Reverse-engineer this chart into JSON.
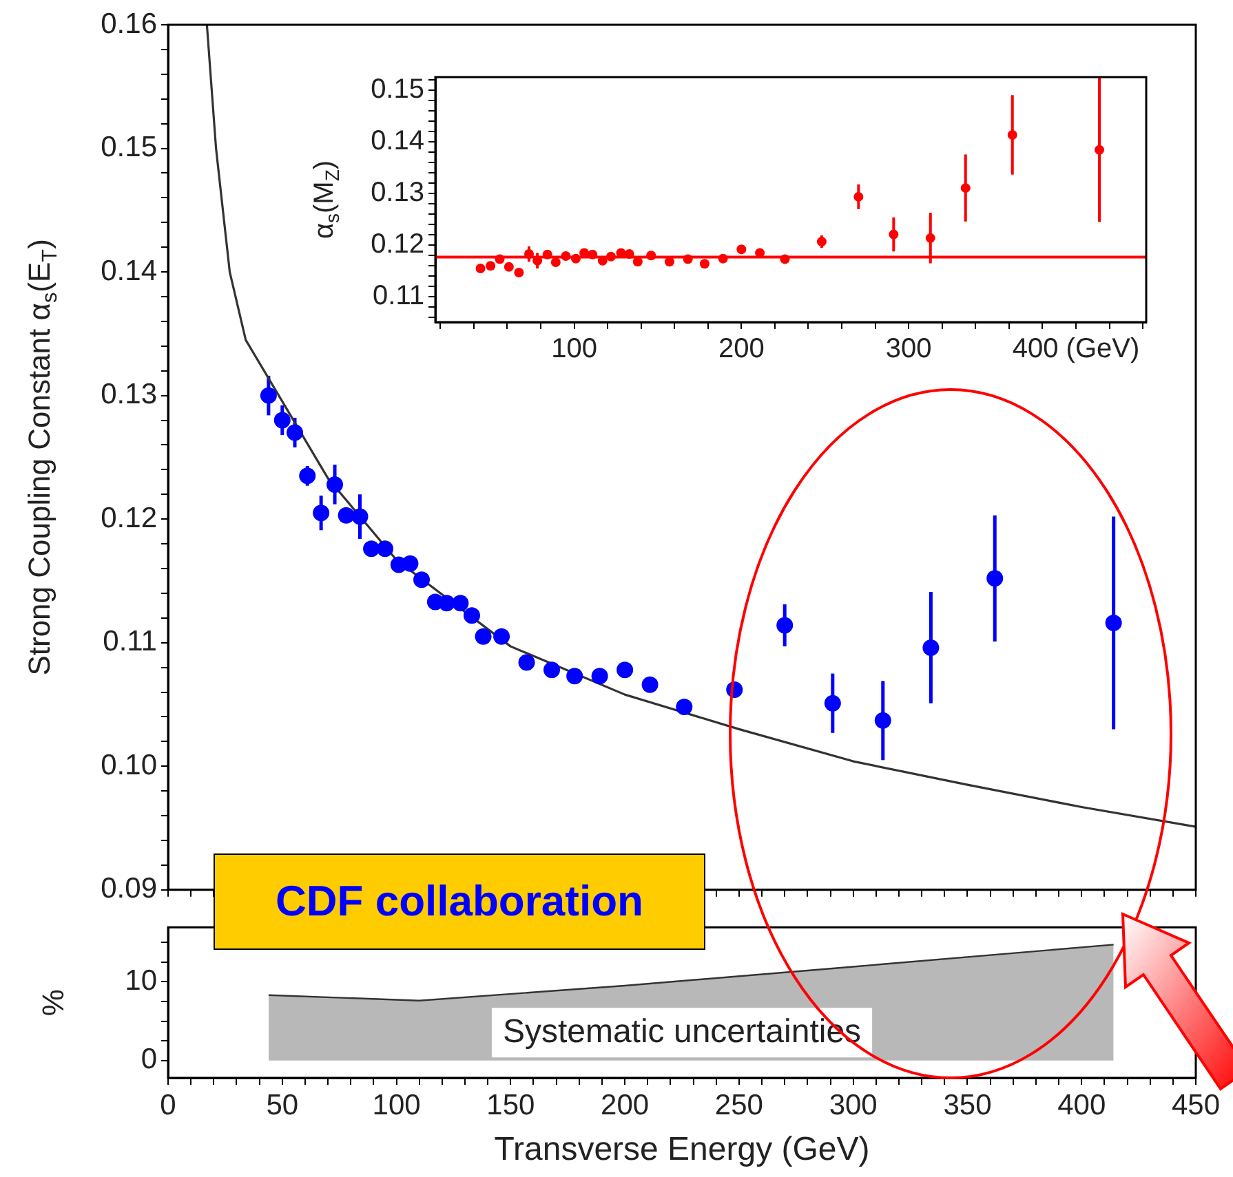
{
  "chart_data": [
    {
      "type": "scatter",
      "ylabel": "Strong Coupling Constant α$_{s}$(E$_{T}$)",
      "xlim": [
        0,
        450
      ],
      "ylim": [
        0.09,
        0.16
      ],
      "tick_labels": "y",
      "marker": "circle",
      "xticks": [
        0,
        {
          "value": 10,
          "label": null
        },
        {
          "value": 20,
          "label": null
        },
        {
          "value": 30,
          "label": null
        },
        {
          "value": 40,
          "label": null
        },
        50,
        {
          "value": 60,
          "label": null
        },
        {
          "value": 70,
          "label": null
        },
        {
          "value": 80,
          "label": null
        },
        {
          "value": 90,
          "label": null
        },
        100,
        {
          "value": 110,
          "label": null
        },
        {
          "value": 120,
          "label": null
        },
        {
          "value": 130,
          "label": null
        },
        {
          "value": 140,
          "label": null
        },
        150,
        {
          "value": 160,
          "label": null
        },
        {
          "value": 170,
          "label": null
        },
        {
          "value": 180,
          "label": null
        },
        {
          "value": 190,
          "label": null
        },
        200,
        {
          "value": 210,
          "label": null
        },
        {
          "value": 220,
          "label": null
        },
        {
          "value": 230,
          "label": null
        },
        {
          "value": 240,
          "label": null
        },
        250,
        {
          "value": 260,
          "label": null
        },
        {
          "value": 270,
          "label": null
        },
        {
          "value": 280,
          "label": null
        },
        {
          "value": 290,
          "label": null
        },
        300,
        {
          "value": 310,
          "label": null
        },
        {
          "value": 320,
          "label": null
        },
        {
          "value": 330,
          "label": null
        },
        {
          "value": 340,
          "label": null
        },
        350,
        {
          "value": 360,
          "label": null
        },
        {
          "value": 370,
          "label": null
        },
        {
          "value": 380,
          "label": null
        },
        {
          "value": 390,
          "label": null
        },
        400,
        {
          "value": 410,
          "label": null
        },
        {
          "value": 420,
          "label": null
        },
        {
          "value": 430,
          "label": null
        },
        {
          "value": 440,
          "label": null
        },
        450
      ],
      "yticks": [
        0.09,
        {
          "value": 0.092,
          "label": null
        },
        {
          "value": 0.094,
          "label": null
        },
        {
          "value": 0.096,
          "label": null
        },
        {
          "value": 0.098,
          "label": null
        },
        {
          "value": 0.1,
          "label": "0.10"
        },
        {
          "value": 0.102,
          "label": null
        },
        {
          "value": 0.104,
          "label": null
        },
        {
          "value": 0.106,
          "label": null
        },
        {
          "value": 0.108,
          "label": null
        },
        0.11,
        {
          "value": 0.112,
          "label": null
        },
        {
          "value": 0.114,
          "label": null
        },
        {
          "value": 0.116,
          "label": null
        },
        {
          "value": 0.118,
          "label": null
        },
        0.12,
        {
          "value": 0.122,
          "label": null
        },
        {
          "value": 0.124,
          "label": null
        },
        {
          "value": 0.126,
          "label": null
        },
        {
          "value": 0.128,
          "label": null
        },
        0.13,
        {
          "value": 0.132,
          "label": null
        },
        {
          "value": 0.134,
          "label": null
        },
        {
          "value": 0.136,
          "label": null
        },
        {
          "value": 0.138,
          "label": null
        },
        0.14,
        {
          "value": 0.142,
          "label": null
        },
        {
          "value": 0.144,
          "label": null
        },
        {
          "value": 0.146,
          "label": null
        },
        {
          "value": 0.148,
          "label": null
        },
        0.15,
        {
          "value": 0.152,
          "label": null
        },
        {
          "value": 0.154,
          "label": null
        },
        {
          "value": 0.156,
          "label": null
        },
        {
          "value": 0.158,
          "label": null
        },
        0.16
      ],
      "annotations": [
        "CDF collaboration"
      ],
      "series": [
        {
          "color": "#0000ff",
          "x": [
            44,
            50,
            55.5,
            61,
            67,
            73,
            78,
            84,
            89,
            95,
            101,
            106,
            111,
            117,
            122,
            128,
            133,
            138,
            146,
            157,
            168,
            178,
            189,
            200,
            211,
            226,
            248,
            270,
            291,
            313,
            334,
            362,
            414
          ],
          "values": [
            0.13,
            0.128,
            0.127,
            0.1235,
            0.1205,
            0.1228,
            0.1203,
            0.1202,
            0.1176,
            0.1176,
            0.1163,
            0.1164,
            0.1151,
            0.1133,
            0.1132,
            0.1132,
            0.1122,
            0.1105,
            0.1105,
            0.1084,
            0.1078,
            0.1073,
            0.1073,
            0.1078,
            0.1066,
            0.1048,
            0.1062,
            0.1114,
            0.1051,
            0.1037,
            0.1096,
            0.1152,
            0.1116
          ],
          "errors": [
            0.0016,
            0.0012,
            0.0012,
            0.0008,
            0.0014,
            0.0016,
            0.0006,
            0.0018,
            0.0005,
            0.0005,
            0.0005,
            0.0005,
            0.0005,
            0.0006,
            0.0005,
            0.0005,
            0.0005,
            0.0005,
            0.0005,
            0.0004,
            0.0004,
            0.0004,
            0.0004,
            0.0004,
            0.0004,
            0.0004,
            0.0006,
            0.0017,
            0.0024,
            0.0032,
            0.0045,
            0.0051,
            0.0086
          ]
        },
        {
          "type": "line",
          "color": "#333333",
          "marker": "none",
          "x": [
            17,
            21,
            27,
            34,
            70,
            100,
            150,
            200,
            250,
            300,
            350,
            400,
            450
          ],
          "values": [
            0.16,
            0.15,
            0.14,
            0.1345,
            0.1233,
            0.1167,
            0.1097,
            0.1058,
            0.103,
            0.1004,
            0.0985,
            0.0967,
            0.0951
          ]
        }
      ]
    },
    {
      "type": "scatter",
      "ylabel": "α$_{s}$(M$_{Z}$)",
      "xlim": [
        17,
        442
      ],
      "ylim": [
        0.105,
        0.1525
      ],
      "marker": "circle",
      "xticks": [
        {
          "value": 20,
          "label": null
        },
        {
          "value": 40,
          "label": null
        },
        {
          "value": 60,
          "label": null
        },
        {
          "value": 80,
          "label": null
        },
        100,
        {
          "value": 120,
          "label": null
        },
        {
          "value": 140,
          "label": null
        },
        {
          "value": 160,
          "label": null
        },
        {
          "value": 180,
          "label": null
        },
        200,
        {
          "value": 220,
          "label": null
        },
        {
          "value": 240,
          "label": null
        },
        {
          "value": 260,
          "label": null
        },
        {
          "value": 280,
          "label": null
        },
        300,
        {
          "value": 320,
          "label": null
        },
        {
          "value": 340,
          "label": null
        },
        {
          "value": 360,
          "label": null
        },
        {
          "value": 380,
          "label": null
        },
        {
          "value": 400,
          "label": "400 (GeV)"
        },
        {
          "value": 420,
          "label": null
        },
        {
          "value": 440,
          "label": null
        }
      ],
      "yticks": [
        {
          "value": 0.106,
          "label": null
        },
        {
          "value": 0.108,
          "label": null
        },
        0.11,
        {
          "value": 0.112,
          "label": null
        },
        {
          "value": 0.114,
          "label": null
        },
        {
          "value": 0.116,
          "label": null
        },
        {
          "value": 0.118,
          "label": null
        },
        0.12,
        {
          "value": 0.122,
          "label": null
        },
        {
          "value": 0.124,
          "label": null
        },
        {
          "value": 0.126,
          "label": null
        },
        {
          "value": 0.128,
          "label": null
        },
        0.13,
        {
          "value": 0.132,
          "label": null
        },
        {
          "value": 0.134,
          "label": null
        },
        {
          "value": 0.136,
          "label": null
        },
        {
          "value": 0.138,
          "label": null
        },
        0.14,
        {
          "value": 0.142,
          "label": null
        },
        {
          "value": 0.144,
          "label": null
        },
        {
          "value": 0.146,
          "label": null
        },
        {
          "value": 0.148,
          "label": null
        },
        0.15,
        {
          "value": 0.152,
          "label": null
        }
      ],
      "ref_lines": [
        {
          "axis": "y",
          "value": 0.1176,
          "color": "#ff0000"
        }
      ],
      "series": [
        {
          "color": "#ff0000",
          "x": [
            44,
            50,
            55.5,
            61,
            67,
            73,
            78,
            84,
            89,
            95,
            101,
            106,
            111,
            117,
            122,
            128,
            133,
            138,
            146,
            157,
            168,
            178,
            189,
            200,
            211,
            226,
            248,
            270,
            291,
            313,
            334,
            362,
            414
          ],
          "values": [
            0.1154,
            0.1159,
            0.1172,
            0.1157,
            0.1146,
            0.1182,
            0.1169,
            0.1181,
            0.1166,
            0.1178,
            0.1173,
            0.1184,
            0.1181,
            0.1169,
            0.1177,
            0.1184,
            0.1182,
            0.1167,
            0.1179,
            0.1167,
            0.1172,
            0.1163,
            0.1173,
            0.1191,
            0.1184,
            0.1172,
            0.1206,
            0.1293,
            0.122,
            0.1213,
            0.131,
            0.1413,
            0.1384
          ],
          "errors": [
            0.0007,
            0.0005,
            0.0005,
            0.0005,
            0.0007,
            0.0015,
            0.0015,
            0.0005,
            0.0005,
            0.0005,
            0.0005,
            0.0005,
            0.0005,
            0.0005,
            0.0005,
            0.0005,
            0.0005,
            0.0005,
            0.0005,
            0.0005,
            0.0005,
            0.0005,
            0.0005,
            0.0005,
            0.0005,
            0.0005,
            0.0012,
            0.0024,
            0.0033,
            0.0049,
            0.0065,
            0.0077,
            0.014
          ]
        }
      ]
    },
    {
      "type": "area",
      "xlabel": "Transverse Energy (GeV)",
      "ylabel": "%",
      "xlim": [
        0,
        450
      ],
      "ylim": [
        -2.2,
        16.9
      ],
      "xticks": [
        0,
        {
          "value": 10,
          "label": null
        },
        {
          "value": 20,
          "label": null
        },
        {
          "value": 30,
          "label": null
        },
        {
          "value": 40,
          "label": null
        },
        50,
        {
          "value": 60,
          "label": null
        },
        {
          "value": 70,
          "label": null
        },
        {
          "value": 80,
          "label": null
        },
        {
          "value": 90,
          "label": null
        },
        100,
        {
          "value": 110,
          "label": null
        },
        {
          "value": 120,
          "label": null
        },
        {
          "value": 130,
          "label": null
        },
        {
          "value": 140,
          "label": null
        },
        150,
        {
          "value": 160,
          "label": null
        },
        {
          "value": 170,
          "label": null
        },
        {
          "value": 180,
          "label": null
        },
        {
          "value": 190,
          "label": null
        },
        200,
        {
          "value": 210,
          "label": null
        },
        {
          "value": 220,
          "label": null
        },
        {
          "value": 230,
          "label": null
        },
        {
          "value": 240,
          "label": null
        },
        250,
        {
          "value": 260,
          "label": null
        },
        {
          "value": 270,
          "label": null
        },
        {
          "value": 280,
          "label": null
        },
        {
          "value": 290,
          "label": null
        },
        300,
        {
          "value": 310,
          "label": null
        },
        {
          "value": 320,
          "label": null
        },
        {
          "value": 330,
          "label": null
        },
        {
          "value": 340,
          "label": null
        },
        350,
        {
          "value": 360,
          "label": null
        },
        {
          "value": 370,
          "label": null
        },
        {
          "value": 380,
          "label": null
        },
        {
          "value": 390,
          "label": null
        },
        400,
        {
          "value": 410,
          "label": null
        },
        {
          "value": 420,
          "label": null
        },
        {
          "value": 430,
          "label": null
        },
        {
          "value": 440,
          "label": null
        },
        450
      ],
      "yticks": [
        0,
        {
          "value": 2.5,
          "label": null
        },
        {
          "value": 5,
          "label": null
        },
        {
          "value": 7.5,
          "label": null
        },
        10,
        {
          "value": 12.5,
          "label": null
        },
        {
          "value": 15,
          "label": null
        }
      ],
      "annotations": [
        "Systematic uncertainties"
      ],
      "series": [
        {
          "color": "#333333",
          "x": [
            44,
            110,
            200,
            300,
            414
          ],
          "values": [
            8.3,
            7.6,
            9.5,
            11.9,
            14.7
          ]
        }
      ]
    }
  ]
}
